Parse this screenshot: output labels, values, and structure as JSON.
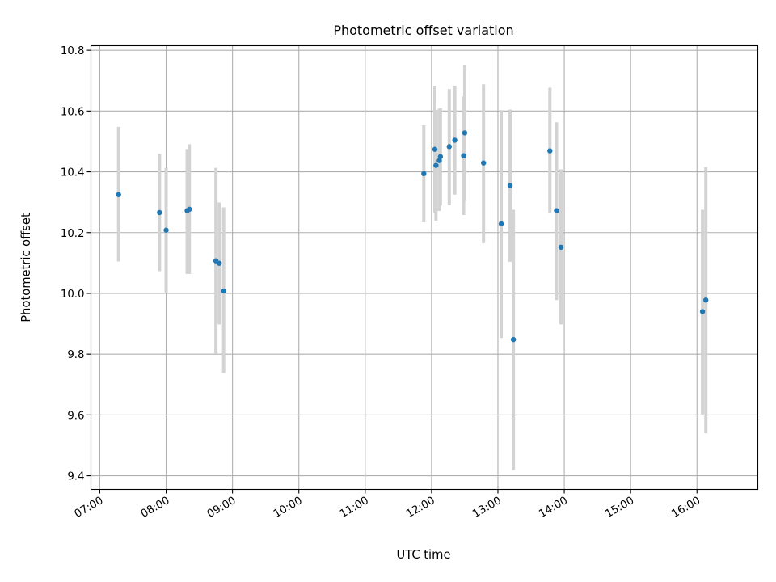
{
  "chart_data": {
    "type": "scatter",
    "title": "Photometric offset variation",
    "xlabel": "UTC time",
    "ylabel": "Photometric offset",
    "x_ticks": [
      "07:00",
      "08:00",
      "09:00",
      "10:00",
      "11:00",
      "12:00",
      "13:00",
      "14:00",
      "15:00",
      "16:00"
    ],
    "y_ticks": [
      "9.4",
      "9.6",
      "9.8",
      "10.0",
      "10.2",
      "10.4",
      "10.6",
      "10.8"
    ],
    "xlim": [
      "06:52",
      "16:55"
    ],
    "ylim": [
      9.355,
      10.815
    ],
    "grid": true,
    "colors": {
      "marker": "#1f77b4",
      "errorbar": "#d3d3d3",
      "grid": "#b0b0b0"
    },
    "points": [
      {
        "x": "07:17",
        "y": 10.325,
        "ymin": 10.105,
        "ymax": 10.548
      },
      {
        "x": "07:54",
        "y": 10.266,
        "ymin": 10.073,
        "ymax": 10.459
      },
      {
        "x": "08:00",
        "y": 10.208,
        "ymin": 10.003,
        "ymax": 10.413
      },
      {
        "x": "08:19",
        "y": 10.272,
        "ymin": 10.064,
        "ymax": 10.475
      },
      {
        "x": "08:21",
        "y": 10.277,
        "ymin": 10.064,
        "ymax": 10.491
      },
      {
        "x": "08:45",
        "y": 10.107,
        "ymin": 9.802,
        "ymax": 10.413
      },
      {
        "x": "08:48",
        "y": 10.099,
        "ymin": 9.898,
        "ymax": 10.299
      },
      {
        "x": "08:52",
        "y": 10.008,
        "ymin": 9.738,
        "ymax": 10.283
      },
      {
        "x": "11:53",
        "y": 10.394,
        "ymin": 10.234,
        "ymax": 10.553
      },
      {
        "x": "12:03",
        "y": 10.474,
        "ymin": 10.266,
        "ymax": 10.683
      },
      {
        "x": "12:04",
        "y": 10.421,
        "ymin": 10.239,
        "ymax": 10.603
      },
      {
        "x": "12:07",
        "y": 10.437,
        "ymin": 10.271,
        "ymax": 10.608
      },
      {
        "x": "12:08",
        "y": 10.45,
        "ymin": 10.29,
        "ymax": 10.61
      },
      {
        "x": "12:16",
        "y": 10.483,
        "ymin": 10.29,
        "ymax": 10.672
      },
      {
        "x": "12:21",
        "y": 10.504,
        "ymin": 10.325,
        "ymax": 10.683
      },
      {
        "x": "12:29",
        "y": 10.453,
        "ymin": 10.258,
        "ymax": 10.648
      },
      {
        "x": "12:30",
        "y": 10.528,
        "ymin": 10.304,
        "ymax": 10.752
      },
      {
        "x": "12:47",
        "y": 10.429,
        "ymin": 10.165,
        "ymax": 10.688
      },
      {
        "x": "13:03",
        "y": 10.229,
        "ymin": 9.853,
        "ymax": 10.603
      },
      {
        "x": "13:11",
        "y": 10.355,
        "ymin": 10.104,
        "ymax": 10.605
      },
      {
        "x": "13:14",
        "y": 9.848,
        "ymin": 9.418,
        "ymax": 10.275
      },
      {
        "x": "13:47",
        "y": 10.469,
        "ymin": 10.263,
        "ymax": 10.677
      },
      {
        "x": "13:53",
        "y": 10.272,
        "ymin": 9.978,
        "ymax": 10.563
      },
      {
        "x": "13:57",
        "y": 10.152,
        "ymin": 9.898,
        "ymax": 10.408
      },
      {
        "x": "16:05",
        "y": 9.94,
        "ymin": 9.602,
        "ymax": 10.275
      },
      {
        "x": "16:08",
        "y": 9.978,
        "ymin": 9.539,
        "ymax": 10.416
      }
    ]
  }
}
